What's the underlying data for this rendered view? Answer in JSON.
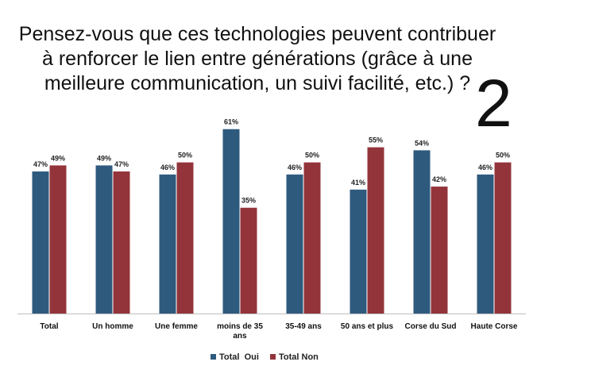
{
  "slide": {
    "title": "Pensez-vous que ces technologies peuvent contribuer à renforcer le lien entre générations (grâce à une meilleure communication, un suivi facilité, etc.) ?",
    "number": "2"
  },
  "chart_data": {
    "type": "bar",
    "title": "",
    "xlabel": "",
    "ylabel": "",
    "ylim": [
      0,
      70
    ],
    "grid": false,
    "legend_position": "bottom",
    "categories": [
      [
        "Total"
      ],
      [
        "Un homme"
      ],
      [
        "Une femme"
      ],
      [
        "moins de 35",
        "ans"
      ],
      [
        "35-49 ans"
      ],
      [
        "50 ans et plus"
      ],
      [
        "Corse du Sud"
      ],
      [
        "Haute Corse"
      ]
    ],
    "series": [
      {
        "name": "Total  Oui",
        "color": "#2E5A7E",
        "values": [
          47,
          49,
          46,
          61,
          46,
          41,
          54,
          46
        ],
        "labels": [
          "47%",
          "49%",
          "46%",
          "61%",
          "46%",
          "41%",
          "54%",
          "46%"
        ]
      },
      {
        "name": "Total Non",
        "color": "#93343B",
        "values": [
          49,
          47,
          50,
          35,
          50,
          55,
          42,
          50
        ],
        "labels": [
          "49%",
          "47%",
          "50%",
          "35%",
          "50%",
          "55%",
          "42%",
          "50%"
        ]
      }
    ]
  }
}
